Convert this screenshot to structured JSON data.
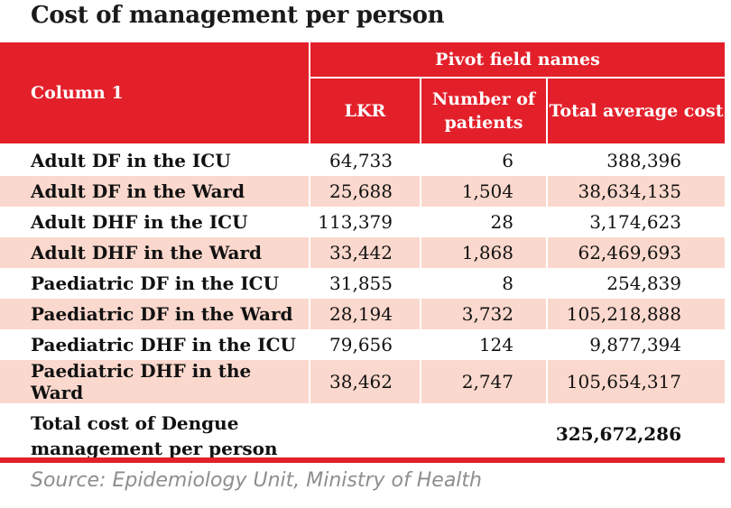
{
  "title": "Cost of management per person",
  "header": {
    "group": "Pivot field names",
    "col1": "Column 1",
    "col2": "LKR",
    "col3": "Number of patients",
    "col4": "Total average cost"
  },
  "rows": [
    {
      "label": "Adult DF in the ICU",
      "lkr": "64,733",
      "patients": "6",
      "total": "388,396"
    },
    {
      "label": "Adult DF in the Ward",
      "lkr": "25,688",
      "patients": "1,504",
      "total": "38,634,135"
    },
    {
      "label": "Adult DHF in the ICU",
      "lkr": "113,379",
      "patients": "28",
      "total": "3,174,623"
    },
    {
      "label": "Adult DHF in the Ward",
      "lkr": "33,442",
      "patients": "1,868",
      "total": "62,469,693"
    },
    {
      "label": "Paediatric DF in the ICU",
      "lkr": "31,855",
      "patients": "8",
      "total": "254,839"
    },
    {
      "label": "Paediatric DF in the Ward",
      "lkr": "28,194",
      "patients": "3,732",
      "total": "105,218,888"
    },
    {
      "label": "Paediatric DHF in the ICU",
      "lkr": "79,656",
      "patients": "124",
      "total": "9,877,394"
    },
    {
      "label": "Paediatric DHF in the Ward",
      "lkr": "38,462",
      "patients": "2,747",
      "total": "105,654,317"
    }
  ],
  "total": {
    "label_line1": "Total cost of Dengue",
    "label_line2": "management per person",
    "value": "325,672,286"
  },
  "source": "Source: Epidemiology Unit, Ministry of Health",
  "colors": {
    "accent": "#e3202a",
    "stripe": "#fbd8cd"
  }
}
